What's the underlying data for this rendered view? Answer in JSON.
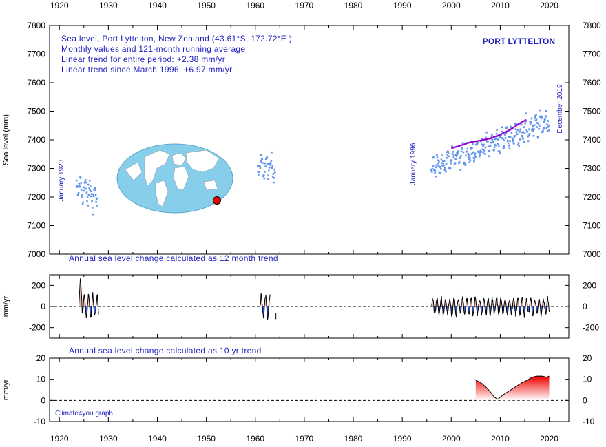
{
  "chart_data": [
    {
      "type": "scatter",
      "panel": "sea-level",
      "title_lines": [
        "Sea level, Port Lyttelton, New Zealand (43.61°S, 172.72°E )",
        "Monthly values and 121-month running average",
        "Linear trend for entire period: +2.38 mm/yr",
        "Linear trend since March 1996: +6.97 mm/yr"
      ],
      "station_label": "PORT LYTTELTON",
      "ylabel": "Sea level (mm)",
      "xlim": [
        1918,
        2024
      ],
      "ylim": [
        7000,
        7800
      ],
      "x_ticks": [
        1920,
        1930,
        1940,
        1950,
        1960,
        1970,
        1980,
        1990,
        2000,
        2010,
        2020
      ],
      "y_ticks": [
        7000,
        7100,
        7200,
        7300,
        7400,
        7500,
        7600,
        7700,
        7800
      ],
      "annotations": [
        "January 1923",
        "January 1996",
        "December 2019"
      ],
      "point_color": "#6495ed",
      "running_average_color": "#9400d3",
      "segments": [
        {
          "start": 1923.5,
          "end": 1927.8,
          "mean": 7240,
          "trend": -10,
          "spread": 60
        },
        {
          "start": 1960.5,
          "end": 1964.0,
          "mean": 7305,
          "trend": 0,
          "spread": 50
        },
        {
          "start": 1995.9,
          "end": 2020.0,
          "mean": 7300,
          "trend": 7.0,
          "spread": 45
        }
      ],
      "running_average": {
        "x": [
          2000,
          2002,
          2004,
          2006,
          2008,
          2010,
          2012,
          2014,
          2015.3
        ],
        "y": [
          7370,
          7381,
          7392,
          7398,
          7405,
          7418,
          7435,
          7458,
          7470
        ]
      }
    },
    {
      "type": "area",
      "panel": "annual-change-12month",
      "title": "Annual sea level change calculated as 12 month trend",
      "ylabel": "mm/yr",
      "xlim": [
        1918,
        2024
      ],
      "ylim": [
        -300,
        300
      ],
      "y_ticks": [
        -200,
        0,
        200
      ],
      "positive_color": "#f4b6ab",
      "negative_color": "#1f3fbf",
      "segments": [
        {
          "start": 1924.0,
          "end": 1928.0,
          "amplitude": 120,
          "peak": 270
        },
        {
          "start": 1961.0,
          "end": 1963.0,
          "amplitude": 110,
          "peak": 0
        },
        {
          "start": 1996.0,
          "end": 2020.0,
          "amplitude": 85,
          "peak": 0
        }
      ],
      "outlier": {
        "x": 1964.2,
        "y1": -60,
        "y2": -120
      }
    },
    {
      "type": "area",
      "panel": "annual-change-10yr",
      "title": "Annual sea level change calculated as 10 yr trend",
      "ylabel": "mm/yr",
      "xlim": [
        1918,
        2024
      ],
      "ylim": [
        -10,
        20
      ],
      "y_ticks": [
        -10,
        0,
        10,
        20
      ],
      "fill_top_color": "#ee0000",
      "fill_bottom_color": "#ffffff",
      "credit": "Climate4you graph",
      "x": [
        2005.0,
        2006.0,
        2007.0,
        2008.0,
        2008.8,
        2009.5,
        2010.5,
        2011.5,
        2012.5,
        2013.5,
        2014.5,
        2015.5,
        2016.5,
        2017.5,
        2018.5,
        2019.5,
        2020.0
      ],
      "y": [
        9.5,
        8.5,
        6.5,
        4.0,
        1.5,
        0.5,
        2.5,
        4.0,
        5.5,
        7.0,
        8.5,
        9.5,
        11.0,
        11.5,
        11.5,
        11.0,
        11.5
      ]
    }
  ]
}
